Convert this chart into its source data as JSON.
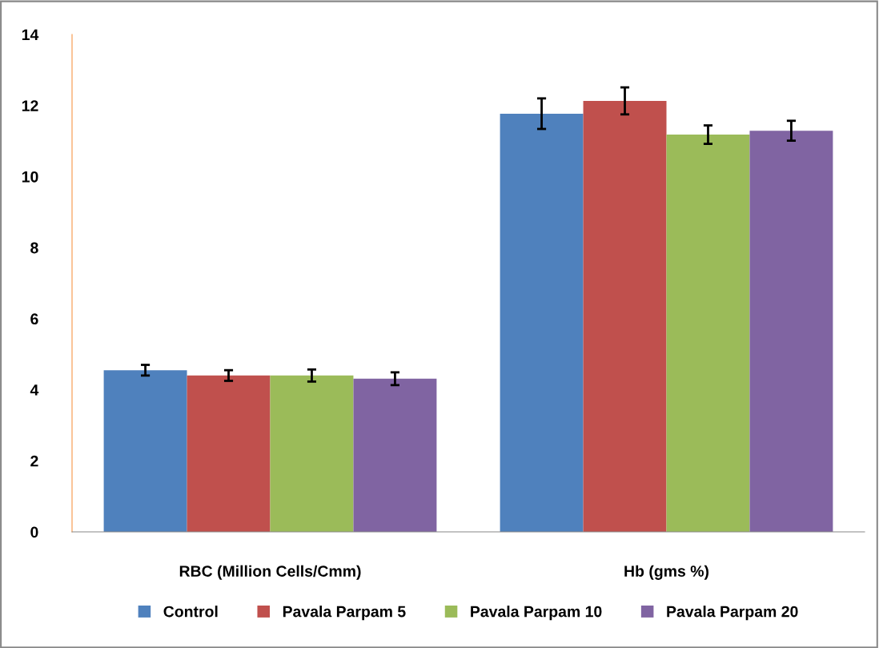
{
  "chart_data": {
    "type": "bar",
    "categories": [
      "RBC (Million Cells/Cmm)",
      "Hb (gms %)"
    ],
    "series": [
      {
        "name": "Control",
        "color": "#4f81bd",
        "values": [
          4.55,
          11.77
        ],
        "errors": [
          0.15,
          0.43
        ]
      },
      {
        "name": "Pavala Parpam 5",
        "color": "#c0504d",
        "values": [
          4.4,
          12.13
        ],
        "errors": [
          0.15,
          0.38
        ]
      },
      {
        "name": "Pavala Parpam 10",
        "color": "#9bbb59",
        "values": [
          4.4,
          11.18
        ],
        "errors": [
          0.17,
          0.26
        ]
      },
      {
        "name": "Pavala Parpam 20",
        "color": "#8064a2",
        "values": [
          4.31,
          11.29
        ],
        "errors": [
          0.18,
          0.28
        ]
      }
    ],
    "ylim": [
      0,
      14
    ],
    "yticks": [
      0,
      2,
      4,
      6,
      8,
      10,
      12,
      14
    ],
    "grid": false,
    "legend": "bottom"
  }
}
